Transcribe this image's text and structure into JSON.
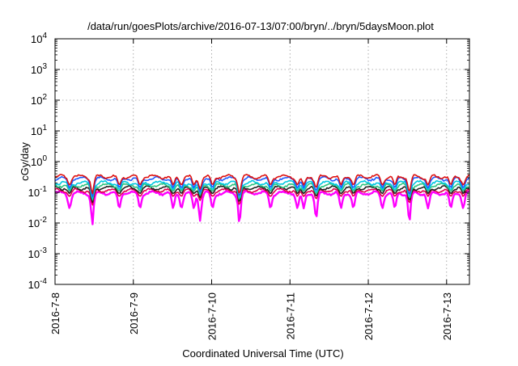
{
  "chart_data": {
    "type": "line",
    "title": "/data/run/goesPlots/archive/2016-07-13/07:00/bryn/../bryn/5daysMoon.plot",
    "xlabel": "Coordinated Universal Time (UTC)",
    "ylabel": "cGy/day",
    "yscale": "log",
    "ylim": [
      0.0001,
      10000
    ],
    "yticks": [
      {
        "value": 0.0001,
        "base": "10",
        "exp": "-4"
      },
      {
        "value": 0.001,
        "base": "10",
        "exp": "-3"
      },
      {
        "value": 0.01,
        "base": "10",
        "exp": "-2"
      },
      {
        "value": 0.1,
        "base": "10",
        "exp": "-1"
      },
      {
        "value": 1,
        "base": "10",
        "exp": "0"
      },
      {
        "value": 10,
        "base": "10",
        "exp": "1"
      },
      {
        "value": 100,
        "base": "10",
        "exp": "2"
      },
      {
        "value": 1000,
        "base": "10",
        "exp": "3"
      },
      {
        "value": 10000,
        "base": "10",
        "exp": "4"
      }
    ],
    "xlim": [
      "2016-07-08 00:00",
      "2016-07-13 07:00"
    ],
    "xticks": [
      "2016-7-8",
      "2016-7-9",
      "2016-7-10",
      "2016-7-11",
      "2016-7-12",
      "2016-7-13"
    ],
    "grid": true,
    "series": [
      {
        "color": "#ff00ff",
        "base": 0.095,
        "dip": 0.045
      },
      {
        "color": "#e0004a",
        "base": 0.115,
        "dip": 0.085
      },
      {
        "color": "#222222",
        "base": 0.14,
        "dip": 0.105
      },
      {
        "color": "#2ec27e",
        "base": 0.17,
        "dip": 0.125
      },
      {
        "color": "#00c8e0",
        "base": 0.205,
        "dip": 0.14
      },
      {
        "color": "#1e5bff",
        "base": 0.28,
        "dip": 0.16
      },
      {
        "color": "#dd1111",
        "base": 0.325,
        "dip": 0.2
      }
    ]
  }
}
